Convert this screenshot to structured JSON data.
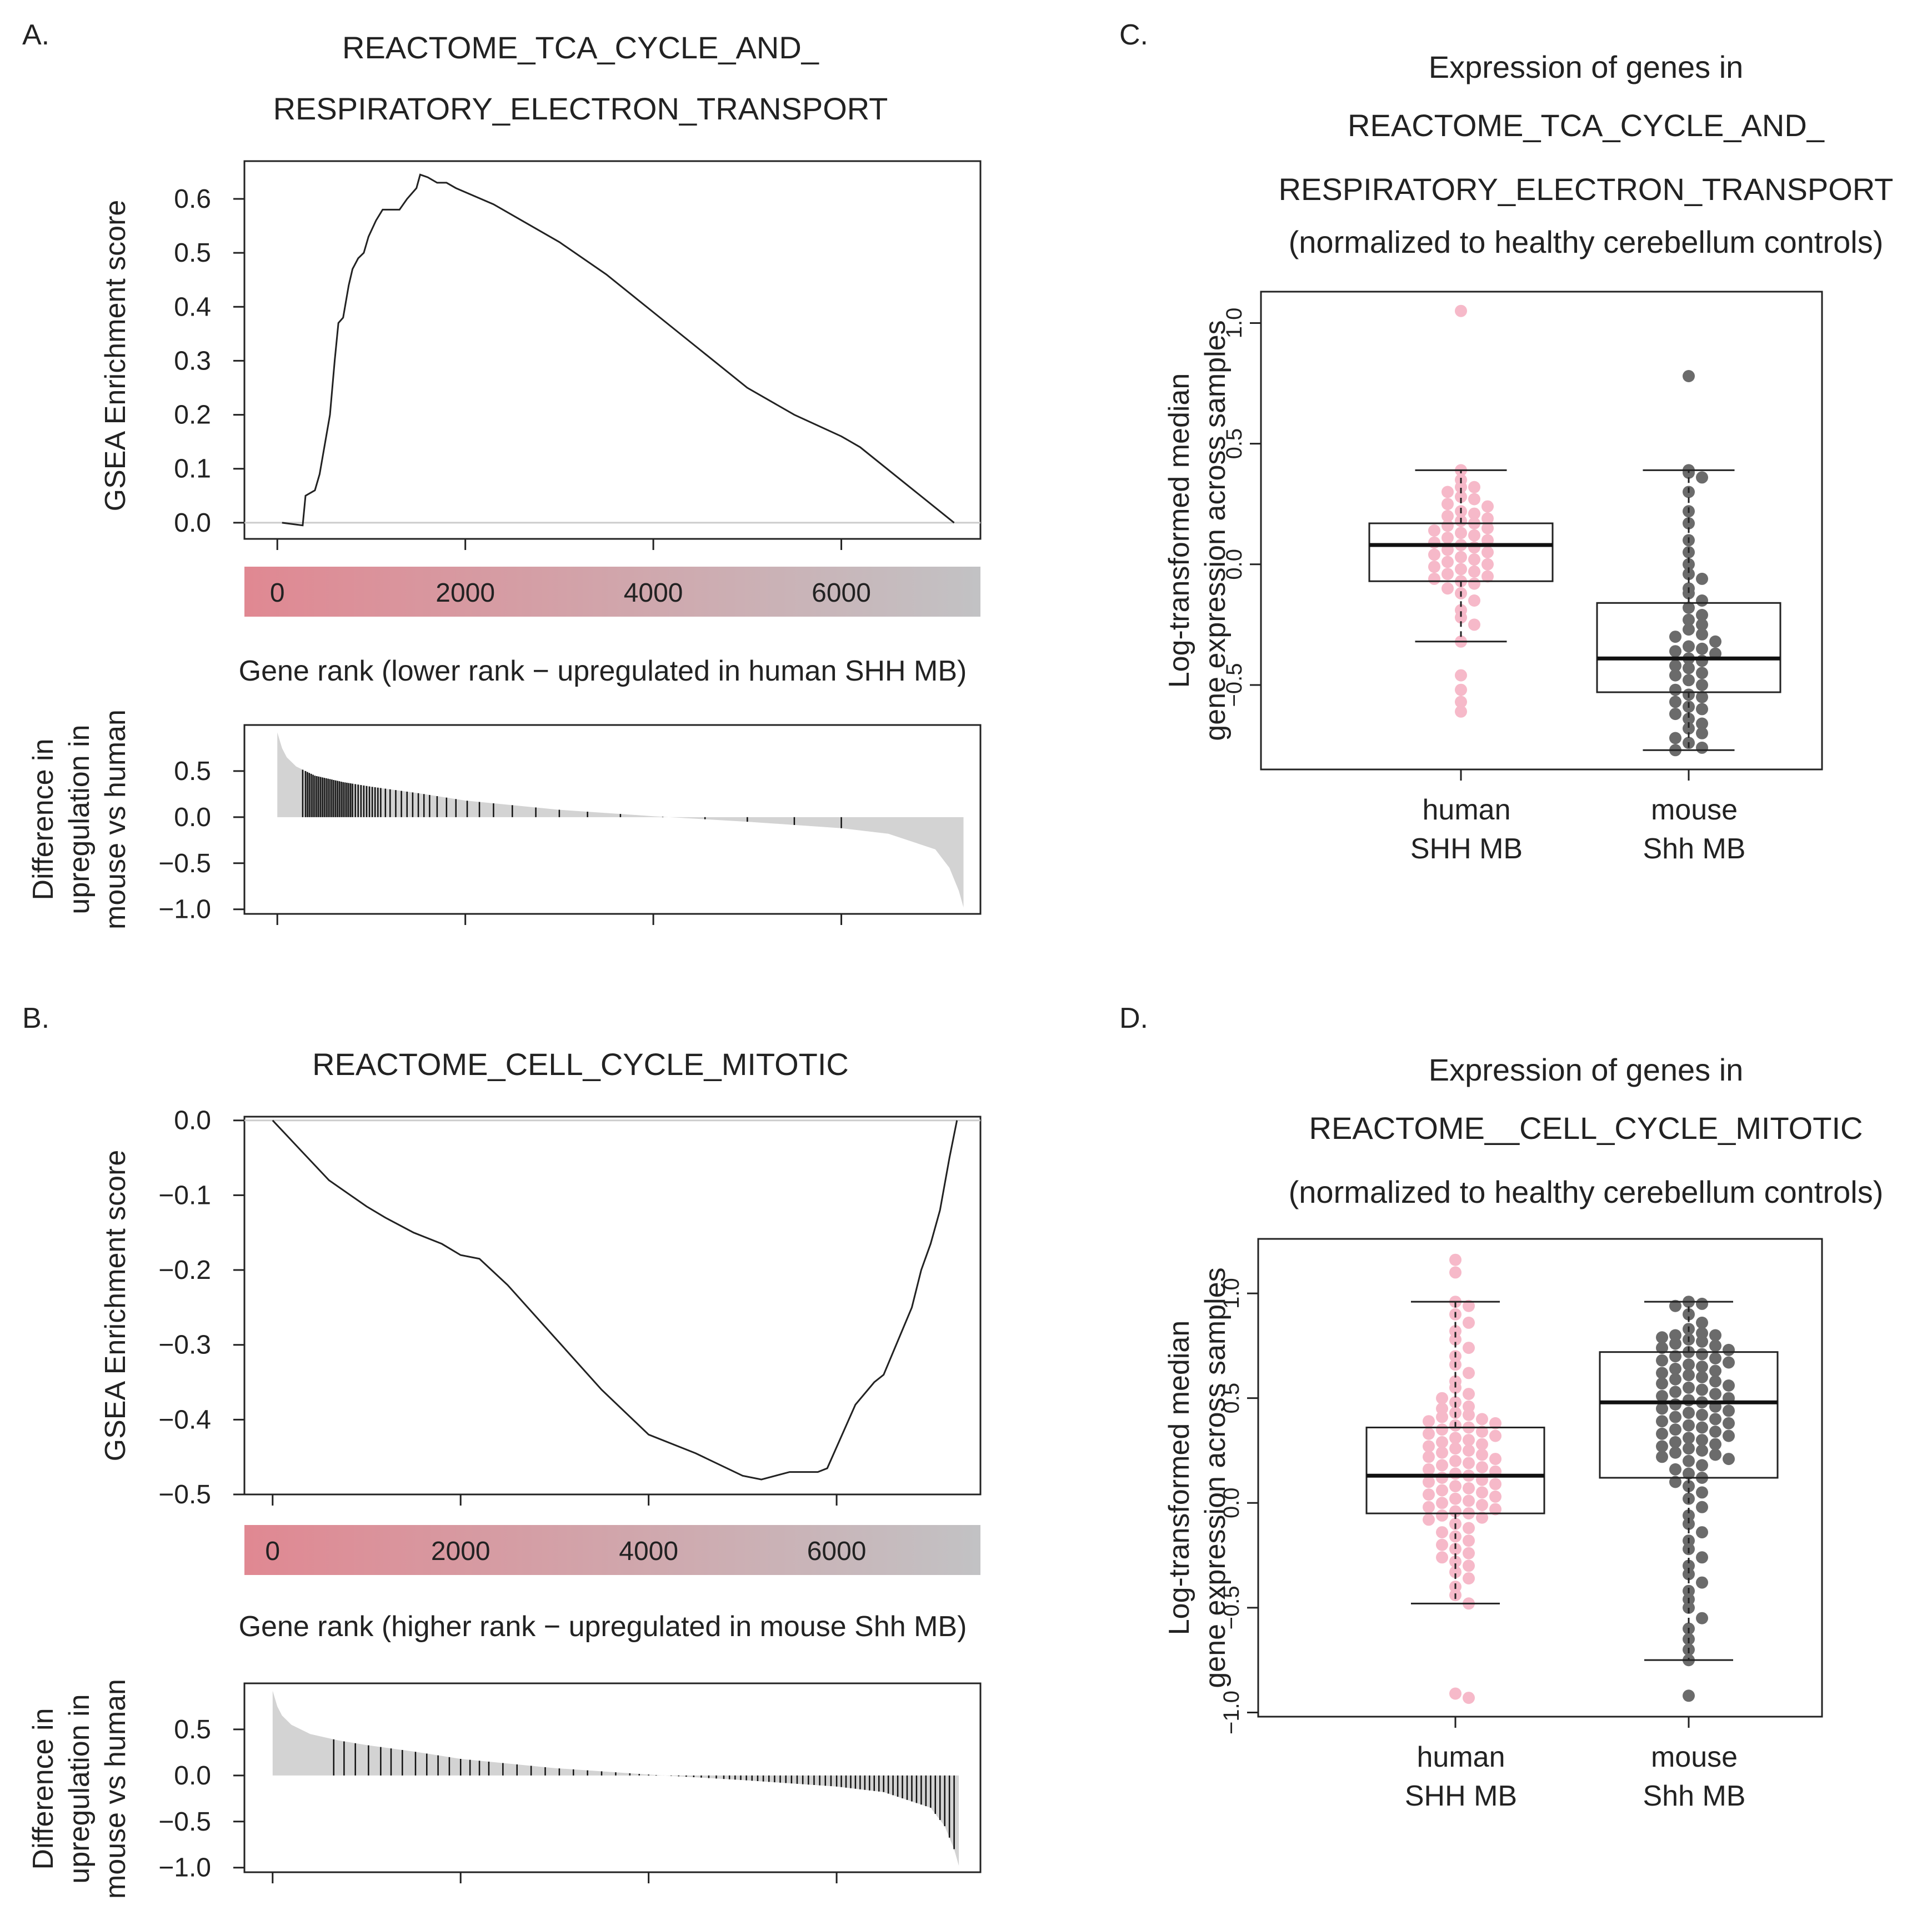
{
  "colors": {
    "human": "#F6B9C9",
    "mouse": "#6B6B6B",
    "rank_low": "#E08892",
    "rank_high": "#C2C2C4",
    "fill": "#D3D3D3",
    "line": "#222222"
  },
  "chart_data": [
    {
      "id": "A",
      "type": "line",
      "panel_label": "A.",
      "title_lines": [
        "REACTOME_TCA_CYCLE_AND_",
        "RESPIRATORY_ELECTRON_TRANSPORT"
      ],
      "ylabel": "GSEA Enrichment score",
      "xlabel": "Gene rank (lower rank − upregulated in human SHH MB)",
      "xlim": [
        -350,
        7480
      ],
      "ylim": [
        -0.03,
        0.67
      ],
      "yticks": [
        "0.0",
        "0.1",
        "0.2",
        "0.3",
        "0.4",
        "0.5",
        "0.6"
      ],
      "ytick_values": [
        0,
        0.1,
        0.2,
        0.3,
        0.4,
        0.5,
        0.6
      ],
      "xticks": [
        "0",
        "2000",
        "4000",
        "6000"
      ],
      "xtick_values": [
        0,
        2000,
        4000,
        6000
      ],
      "es_curve": [
        [
          50,
          0
        ],
        [
          270,
          -0.005
        ],
        [
          300,
          0.05
        ],
        [
          400,
          0.06
        ],
        [
          450,
          0.09
        ],
        [
          560,
          0.2
        ],
        [
          610,
          0.3
        ],
        [
          650,
          0.37
        ],
        [
          700,
          0.38
        ],
        [
          760,
          0.44
        ],
        [
          800,
          0.47
        ],
        [
          860,
          0.49
        ],
        [
          920,
          0.5
        ],
        [
          970,
          0.53
        ],
        [
          1050,
          0.56
        ],
        [
          1120,
          0.58
        ],
        [
          1300,
          0.58
        ],
        [
          1380,
          0.6
        ],
        [
          1480,
          0.62
        ],
        [
          1520,
          0.645
        ],
        [
          1600,
          0.64
        ],
        [
          1700,
          0.63
        ],
        [
          1800,
          0.63
        ],
        [
          1900,
          0.62
        ],
        [
          2300,
          0.59
        ],
        [
          3000,
          0.52
        ],
        [
          3500,
          0.46
        ],
        [
          4000,
          0.39
        ],
        [
          4500,
          0.32
        ],
        [
          5000,
          0.25
        ],
        [
          5500,
          0.2
        ],
        [
          6000,
          0.16
        ],
        [
          6200,
          0.14
        ],
        [
          6700,
          0.07
        ],
        [
          7200,
          0.0
        ]
      ],
      "rank_axis": {
        "ticks": [
          "0",
          "2000",
          "4000",
          "6000"
        ],
        "tick_values": [
          0,
          2000,
          4000,
          6000
        ]
      },
      "diff": {
        "ylabel_lines": [
          "Difference in",
          "upregulation in",
          "mouse vs human"
        ],
        "ylim": [
          -1.05,
          1.0
        ],
        "yticks": [
          "0.5",
          "0.0",
          "−0.5",
          "−1.0"
        ],
        "ytick_values": [
          0.5,
          0,
          -0.5,
          -1.0
        ],
        "curve": [
          [
            0,
            0.92
          ],
          [
            50,
            0.75
          ],
          [
            100,
            0.65
          ],
          [
            200,
            0.55
          ],
          [
            400,
            0.45
          ],
          [
            700,
            0.38
          ],
          [
            1000,
            0.33
          ],
          [
            1500,
            0.26
          ],
          [
            2000,
            0.18
          ],
          [
            3000,
            0.08
          ],
          [
            4000,
            0.01
          ],
          [
            5000,
            -0.05
          ],
          [
            6000,
            -0.12
          ],
          [
            6500,
            -0.18
          ],
          [
            7000,
            -0.35
          ],
          [
            7150,
            -0.55
          ],
          [
            7250,
            -0.8
          ],
          [
            7300,
            -0.98
          ]
        ],
        "hits": [
          270,
          300,
          320,
          340,
          360,
          380,
          400,
          420,
          440,
          460,
          480,
          500,
          520,
          540,
          560,
          580,
          600,
          620,
          640,
          660,
          680,
          700,
          720,
          740,
          760,
          780,
          800,
          830,
          860,
          890,
          920,
          950,
          980,
          1010,
          1040,
          1070,
          1100,
          1150,
          1200,
          1260,
          1320,
          1380,
          1440,
          1500,
          1560,
          1620,
          1700,
          1800,
          1900,
          2020,
          2150,
          2300,
          2500,
          2750,
          3000,
          3300,
          3650,
          4100,
          4550,
          5000,
          5500,
          6000
        ]
      }
    },
    {
      "id": "B",
      "type": "line",
      "panel_label": "B.",
      "title_lines": [
        "REACTOME_CELL_CYCLE_MITOTIC"
      ],
      "ylabel": "GSEA Enrichment score",
      "xlabel": "Gene rank (higher rank − upregulated in mouse Shh MB)",
      "xlim": [
        -300,
        7530
      ],
      "ylim": [
        -0.5,
        0.005
      ],
      "yticks": [
        "0.0",
        "−0.1",
        "−0.2",
        "−0.3",
        "−0.4",
        "−0.5"
      ],
      "ytick_values": [
        0,
        -0.1,
        -0.2,
        -0.3,
        -0.4,
        -0.5
      ],
      "xticks": [
        "0",
        "2000",
        "4000",
        "6000"
      ],
      "xtick_values": [
        0,
        2000,
        4000,
        6000
      ],
      "es_curve": [
        [
          0,
          0
        ],
        [
          300,
          -0.04
        ],
        [
          600,
          -0.08
        ],
        [
          1000,
          -0.115
        ],
        [
          1200,
          -0.13
        ],
        [
          1500,
          -0.15
        ],
        [
          1800,
          -0.165
        ],
        [
          2000,
          -0.18
        ],
        [
          2200,
          -0.185
        ],
        [
          2500,
          -0.22
        ],
        [
          3000,
          -0.29
        ],
        [
          3500,
          -0.36
        ],
        [
          4000,
          -0.42
        ],
        [
          4500,
          -0.445
        ],
        [
          5000,
          -0.475
        ],
        [
          5200,
          -0.48
        ],
        [
          5500,
          -0.47
        ],
        [
          5800,
          -0.47
        ],
        [
          5900,
          -0.465
        ],
        [
          6200,
          -0.38
        ],
        [
          6400,
          -0.35
        ],
        [
          6500,
          -0.34
        ],
        [
          6800,
          -0.25
        ],
        [
          6900,
          -0.2
        ],
        [
          7000,
          -0.165
        ],
        [
          7100,
          -0.12
        ],
        [
          7200,
          -0.05
        ],
        [
          7280,
          0.0
        ]
      ],
      "rank_axis": {
        "ticks": [
          "0",
          "2000",
          "4000",
          "6000"
        ],
        "tick_values": [
          0,
          2000,
          4000,
          6000
        ]
      },
      "diff": {
        "ylabel_lines": [
          "Difference in",
          "upregulation in",
          "mouse vs human"
        ],
        "ylim": [
          -1.05,
          1.0
        ],
        "yticks": [
          "0.5",
          "0.0",
          "−0.5",
          "−1.0"
        ],
        "ytick_values": [
          0.5,
          0,
          -0.5,
          -1.0
        ],
        "curve": [
          [
            0,
            0.92
          ],
          [
            50,
            0.75
          ],
          [
            100,
            0.65
          ],
          [
            200,
            0.55
          ],
          [
            400,
            0.45
          ],
          [
            700,
            0.38
          ],
          [
            1000,
            0.33
          ],
          [
            1500,
            0.26
          ],
          [
            2000,
            0.18
          ],
          [
            3000,
            0.08
          ],
          [
            4000,
            0.01
          ],
          [
            5000,
            -0.05
          ],
          [
            6000,
            -0.12
          ],
          [
            6500,
            -0.18
          ],
          [
            7000,
            -0.35
          ],
          [
            7150,
            -0.55
          ],
          [
            7250,
            -0.8
          ],
          [
            7300,
            -0.98
          ]
        ],
        "hits": [
          650,
          760,
          880,
          1020,
          1150,
          1260,
          1380,
          1520,
          1640,
          1760,
          1880,
          2000,
          2100,
          2200,
          2300,
          2450,
          2600,
          2750,
          2900,
          3050,
          3200,
          3350,
          3500,
          3650,
          3800,
          3900,
          4000,
          4080,
          4160,
          4240,
          4320,
          4400,
          4480,
          4560,
          4640,
          4720,
          4800,
          4860,
          4920,
          4980,
          5040,
          5100,
          5160,
          5220,
          5280,
          5340,
          5400,
          5460,
          5520,
          5580,
          5640,
          5700,
          5760,
          5820,
          5880,
          5940,
          6000,
          6050,
          6100,
          6150,
          6200,
          6250,
          6300,
          6350,
          6400,
          6450,
          6500,
          6550,
          6600,
          6650,
          6700,
          6750,
          6800,
          6850,
          6900,
          6950,
          7000,
          7050,
          7100,
          7150,
          7200,
          7250
        ]
      }
    },
    {
      "id": "C",
      "type": "box",
      "panel_label": "C.",
      "title_lines": [
        "Expression of genes in",
        "REACTOME_TCA_CYCLE_AND_",
        "RESPIRATORY_ELECTRON_TRANSPORT",
        "(normalized to healthy cerebellum controls)"
      ],
      "ylabel_lines": [
        "Log-transformed median",
        "gene expression across samples"
      ],
      "ylim": [
        -0.85,
        1.13
      ],
      "yticks": [
        "1.0",
        "0.5",
        "0.0",
        "−0.5"
      ],
      "ytick_values": [
        1.0,
        0.5,
        0.0,
        -0.5
      ],
      "groups": [
        {
          "label_lines": [
            "human",
            "SHH MB"
          ],
          "color_key": "human",
          "median": 0.08,
          "q1": -0.07,
          "q3": 0.17,
          "whisker_low": -0.32,
          "whisker_high": 0.39,
          "points": [
            1.05,
            0.39,
            0.35,
            0.32,
            0.32,
            0.3,
            0.28,
            0.27,
            0.25,
            0.24,
            0.22,
            0.21,
            0.2,
            0.19,
            0.18,
            0.17,
            0.16,
            0.15,
            0.14,
            0.13,
            0.12,
            0.11,
            0.1,
            0.09,
            0.08,
            0.07,
            0.06,
            0.05,
            0.04,
            0.03,
            0.02,
            0.01,
            0.0,
            -0.01,
            -0.02,
            -0.03,
            -0.04,
            -0.05,
            -0.06,
            -0.07,
            -0.08,
            -0.1,
            -0.12,
            -0.15,
            -0.19,
            -0.22,
            -0.25,
            -0.32,
            -0.46,
            -0.52,
            -0.57,
            -0.61
          ]
        },
        {
          "label_lines": [
            "mouse",
            "Shh MB"
          ],
          "color_key": "mouse",
          "median": -0.39,
          "q1": -0.53,
          "q3": -0.16,
          "whisker_low": -0.77,
          "whisker_high": 0.39,
          "points": [
            0.78,
            0.39,
            0.38,
            0.36,
            0.3,
            0.22,
            0.17,
            0.1,
            0.05,
            0.0,
            -0.04,
            -0.06,
            -0.1,
            -0.12,
            -0.15,
            -0.18,
            -0.21,
            -0.23,
            -0.25,
            -0.27,
            -0.29,
            -0.3,
            -0.32,
            -0.34,
            -0.35,
            -0.36,
            -0.37,
            -0.39,
            -0.4,
            -0.42,
            -0.43,
            -0.45,
            -0.46,
            -0.48,
            -0.5,
            -0.52,
            -0.54,
            -0.55,
            -0.57,
            -0.59,
            -0.6,
            -0.62,
            -0.64,
            -0.66,
            -0.68,
            -0.7,
            -0.72,
            -0.74,
            -0.76,
            -0.77
          ]
        }
      ]
    },
    {
      "id": "D",
      "type": "box",
      "panel_label": "D.",
      "title_lines": [
        "Expression of genes in",
        "REACTOME__CELL_CYCLE_MITOTIC",
        "(normalized to healthy cerebellum controls)"
      ],
      "ylabel_lines": [
        "Log-transformed median",
        "gene expression across samples"
      ],
      "ylim": [
        -1.02,
        1.26
      ],
      "yticks": [
        "1.0",
        "0.5",
        "0.0",
        "−0.5",
        "−1.0"
      ],
      "ytick_values": [
        1.0,
        0.5,
        0.0,
        -0.5,
        -1.0
      ],
      "groups": [
        {
          "label_lines": [
            "human",
            "SHH MB"
          ],
          "color_key": "human",
          "median": 0.13,
          "q1": -0.05,
          "q3": 0.36,
          "whisker_low": -0.48,
          "whisker_high": 0.96,
          "points": [
            1.16,
            1.1,
            0.96,
            0.94,
            0.9,
            0.86,
            0.82,
            0.78,
            0.74,
            0.7,
            0.66,
            0.62,
            0.58,
            0.55,
            0.52,
            0.5,
            0.48,
            0.46,
            0.45,
            0.43,
            0.42,
            0.41,
            0.4,
            0.39,
            0.38,
            0.37,
            0.36,
            0.35,
            0.34,
            0.33,
            0.32,
            0.31,
            0.3,
            0.29,
            0.28,
            0.27,
            0.26,
            0.25,
            0.24,
            0.23,
            0.22,
            0.21,
            0.2,
            0.19,
            0.18,
            0.17,
            0.16,
            0.15,
            0.14,
            0.13,
            0.12,
            0.11,
            0.1,
            0.09,
            0.08,
            0.07,
            0.06,
            0.05,
            0.04,
            0.03,
            0.02,
            0.01,
            0.0,
            -0.01,
            -0.02,
            -0.03,
            -0.04,
            -0.05,
            -0.06,
            -0.07,
            -0.08,
            -0.1,
            -0.12,
            -0.14,
            -0.16,
            -0.18,
            -0.2,
            -0.22,
            -0.24,
            -0.26,
            -0.28,
            -0.3,
            -0.33,
            -0.36,
            -0.4,
            -0.44,
            -0.48,
            -0.91,
            -0.93
          ]
        },
        {
          "label_lines": [
            "mouse",
            "Shh MB"
          ],
          "color_key": "mouse",
          "median": 0.48,
          "q1": 0.12,
          "q3": 0.72,
          "whisker_low": -0.75,
          "whisker_high": 0.96,
          "points": [
            0.96,
            0.95,
            0.94,
            0.9,
            0.86,
            0.83,
            0.81,
            0.8,
            0.8,
            0.79,
            0.78,
            0.77,
            0.76,
            0.75,
            0.74,
            0.73,
            0.72,
            0.71,
            0.7,
            0.69,
            0.68,
            0.67,
            0.66,
            0.65,
            0.64,
            0.63,
            0.62,
            0.61,
            0.6,
            0.59,
            0.58,
            0.57,
            0.56,
            0.55,
            0.54,
            0.53,
            0.52,
            0.51,
            0.5,
            0.49,
            0.48,
            0.47,
            0.46,
            0.45,
            0.44,
            0.43,
            0.42,
            0.41,
            0.4,
            0.39,
            0.38,
            0.37,
            0.36,
            0.35,
            0.34,
            0.33,
            0.32,
            0.31,
            0.3,
            0.29,
            0.28,
            0.27,
            0.26,
            0.25,
            0.24,
            0.23,
            0.22,
            0.21,
            0.2,
            0.18,
            0.16,
            0.14,
            0.12,
            0.1,
            0.08,
            0.05,
            0.02,
            -0.02,
            -0.06,
            -0.1,
            -0.14,
            -0.18,
            -0.22,
            -0.26,
            -0.3,
            -0.34,
            -0.38,
            -0.42,
            -0.46,
            -0.5,
            -0.55,
            -0.6,
            -0.65,
            -0.7,
            -0.75,
            -0.92
          ]
        }
      ]
    }
  ]
}
